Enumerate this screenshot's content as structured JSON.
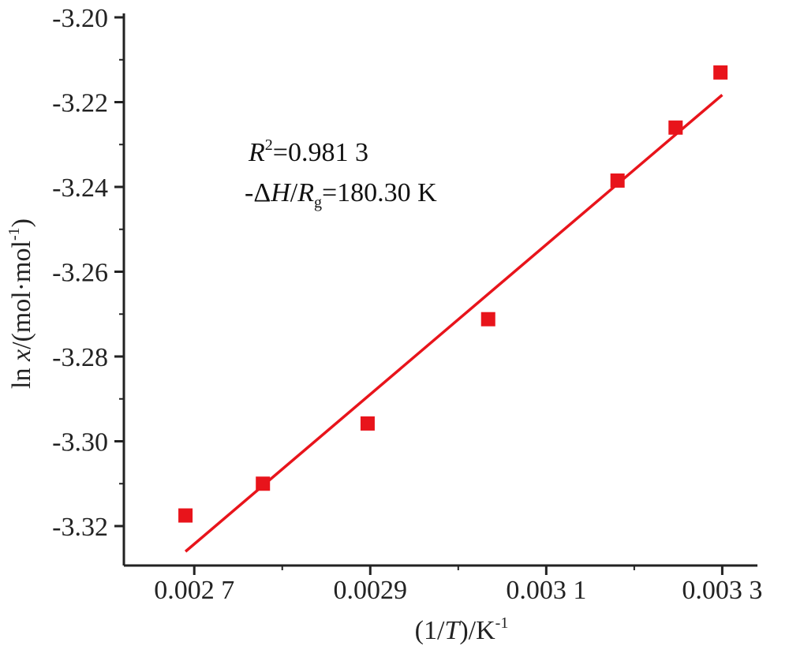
{
  "chart_data": {
    "type": "scatter",
    "xlim": [
      0.00262,
      0.00334
    ],
    "ylim": [
      -3.33,
      -3.2
    ],
    "x_ticks": [
      {
        "value": 0.0027,
        "label": "0.002 7"
      },
      {
        "value": 0.0029,
        "label": "0.0029"
      },
      {
        "value": 0.0031,
        "label": "0.003 1"
      },
      {
        "value": 0.0033,
        "label": "0.003 3"
      }
    ],
    "x_minor_ticks": [
      0.0028,
      0.003,
      0.0032
    ],
    "y_ticks": [
      {
        "value": -3.2,
        "label": "-3.20"
      },
      {
        "value": -3.22,
        "label": "-3.22"
      },
      {
        "value": -3.24,
        "label": "-3.24"
      },
      {
        "value": -3.26,
        "label": "-3.26"
      },
      {
        "value": -3.28,
        "label": "-3.28"
      },
      {
        "value": -3.3,
        "label": "-3.30"
      },
      {
        "value": -3.32,
        "label": "-3.32"
      }
    ],
    "y_minor_ticks": [
      -3.21,
      -3.23,
      -3.25,
      -3.27,
      -3.29,
      -3.31
    ],
    "xlabel": {
      "pre": "(1/",
      "italic": "T",
      "post": ")/K",
      "sup": "-1"
    },
    "ylabel": {
      "pre": "ln ",
      "italic": "x",
      "post": "/(mol·mol",
      "sup": "-1",
      "end": ")"
    },
    "points": [
      {
        "x": 0.00269,
        "y": -3.3175
      },
      {
        "x": 0.002778,
        "y": -3.31
      },
      {
        "x": 0.002897,
        "y": -3.2958
      },
      {
        "x": 0.003034,
        "y": -3.2712
      },
      {
        "x": 0.003181,
        "y": -3.2385
      },
      {
        "x": 0.003247,
        "y": -3.226
      },
      {
        "x": 0.003298,
        "y": -3.213
      }
    ],
    "fit_line": {
      "x": [
        0.00269,
        0.0033
      ],
      "y": [
        -3.326,
        -3.2183
      ]
    },
    "color": "#e8141b",
    "grid": false,
    "annotation": {
      "r2": {
        "var": "R",
        "sup": "2",
        "text": "=0.981 3"
      },
      "dh": {
        "pre": "-Δ",
        "H": "H",
        "slash": "/",
        "R": "R",
        "sub": "g",
        "text": "=180.30 K"
      }
    }
  }
}
